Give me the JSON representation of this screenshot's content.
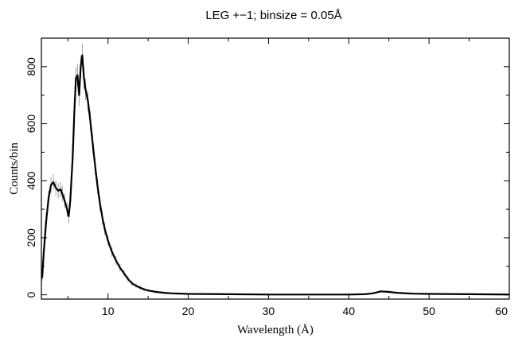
{
  "chart_data": {
    "type": "line",
    "title": "LEG +−1; binsize = 0.05Å",
    "xlabel": "Wavelength (Å)",
    "ylabel": "Counts/bin",
    "xlim": [
      1.7,
      60
    ],
    "ylim": [
      -15,
      900
    ],
    "x_ticks": [
      10,
      20,
      30,
      40,
      50,
      60
    ],
    "y_ticks": [
      0,
      200,
      400,
      600,
      800
    ],
    "x_tick_labels": [
      "10",
      "20",
      "30",
      "40",
      "50",
      "60"
    ],
    "y_tick_labels": [
      "0",
      "200",
      "400",
      "600",
      "800"
    ],
    "grid": false,
    "legend": "none",
    "series": [
      {
        "line_color": "#000000",
        "error_color": "#8a8a8a",
        "x": [
          1.8,
          2.0,
          2.3,
          2.6,
          2.9,
          3.2,
          3.5,
          3.8,
          4.1,
          4.3,
          4.6,
          4.9,
          5.1,
          5.3,
          5.6,
          5.8,
          6.0,
          6.2,
          6.4,
          6.6,
          6.8,
          7.0,
          7.2,
          7.5,
          7.8,
          8.1,
          8.4,
          8.7,
          9.0,
          9.3,
          9.6,
          10.0,
          10.5,
          11.0,
          11.5,
          12.0,
          12.5,
          13.0,
          13.5,
          14.0,
          14.5,
          15.0,
          16.0,
          17.0,
          18.0,
          20.0,
          25.0,
          30.0,
          35.0,
          40.0,
          42.0,
          43.0,
          44.0,
          45.0,
          46.0,
          48.0,
          50.0,
          55.0,
          60.0
        ],
        "y": [
          60,
          150,
          260,
          340,
          385,
          395,
          375,
          365,
          370,
          355,
          330,
          300,
          275,
          330,
          480,
          640,
          760,
          770,
          700,
          800,
          840,
          760,
          720,
          680,
          610,
          530,
          450,
          380,
          320,
          270,
          230,
          190,
          150,
          120,
          95,
          75,
          55,
          40,
          32,
          25,
          19,
          15,
          10,
          7,
          5,
          3,
          2,
          1,
          1,
          1,
          2,
          5,
          12,
          10,
          7,
          4,
          3,
          2,
          1
        ]
      }
    ]
  }
}
